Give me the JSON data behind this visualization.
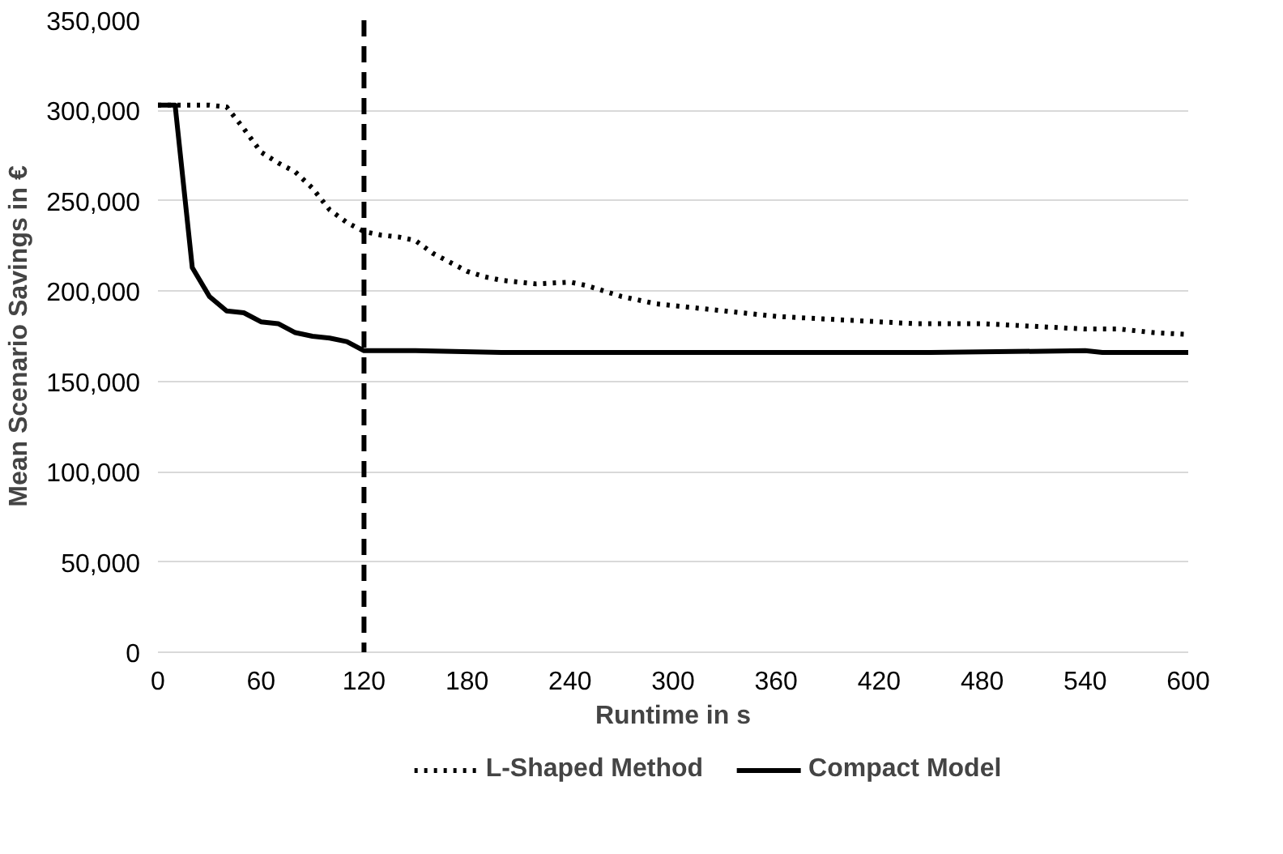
{
  "chart_data": {
    "type": "line",
    "xlabel": "Runtime in s",
    "ylabel": "Mean Scenario Savings in €",
    "xlim": [
      0,
      600
    ],
    "xticks": [
      0,
      60,
      120,
      180,
      240,
      300,
      360,
      420,
      480,
      540,
      600
    ],
    "ylim": [
      0,
      350000
    ],
    "yticks": [
      {
        "value": 0,
        "label": "0"
      },
      {
        "value": 50000,
        "label": "50,000"
      },
      {
        "value": 100000,
        "label": "100,000"
      },
      {
        "value": 150000,
        "label": "150,000"
      },
      {
        "value": 200000,
        "label": "200,000"
      },
      {
        "value": 250000,
        "label": "250,000"
      },
      {
        "value": 300000,
        "label": "300,000"
      },
      {
        "value": 350000,
        "label": "350,000"
      }
    ],
    "grid": "y",
    "legend": "bottom",
    "ref_lines": [
      {
        "axis": "x",
        "value": 120,
        "color": "#000000",
        "line_style": "dashed"
      }
    ],
    "series": [
      {
        "name": "L-Shaped Method",
        "color": "#000000",
        "line_style": "dotted",
        "x": [
          0,
          10,
          20,
          30,
          40,
          50,
          60,
          70,
          80,
          90,
          100,
          110,
          120,
          130,
          140,
          150,
          160,
          170,
          180,
          190,
          200,
          210,
          220,
          240,
          250,
          260,
          270,
          280,
          290,
          300,
          320,
          340,
          360,
          380,
          400,
          420,
          440,
          480,
          500,
          520,
          540,
          560,
          580,
          600
        ],
        "values": [
          303000,
          303000,
          303000,
          303000,
          302000,
          290000,
          277000,
          271000,
          266000,
          257000,
          245000,
          238000,
          233000,
          231000,
          230000,
          228000,
          221000,
          216000,
          211000,
          208000,
          206000,
          205000,
          204000,
          205000,
          203000,
          200000,
          197000,
          195000,
          193000,
          192000,
          190000,
          188000,
          186000,
          185000,
          184000,
          183000,
          182000,
          182000,
          181000,
          180000,
          179000,
          179000,
          177000,
          176000
        ]
      },
      {
        "name": "Compact Model",
        "color": "#000000",
        "line_style": "solid",
        "x": [
          0,
          10,
          20,
          30,
          40,
          50,
          60,
          70,
          80,
          90,
          100,
          110,
          120,
          150,
          200,
          300,
          400,
          450,
          540,
          550,
          600
        ],
        "values": [
          303000,
          303000,
          213000,
          197000,
          189000,
          188000,
          183000,
          182000,
          177000,
          175000,
          174000,
          172000,
          167000,
          167000,
          166000,
          166000,
          166000,
          166000,
          167000,
          166000,
          166000
        ]
      }
    ]
  }
}
